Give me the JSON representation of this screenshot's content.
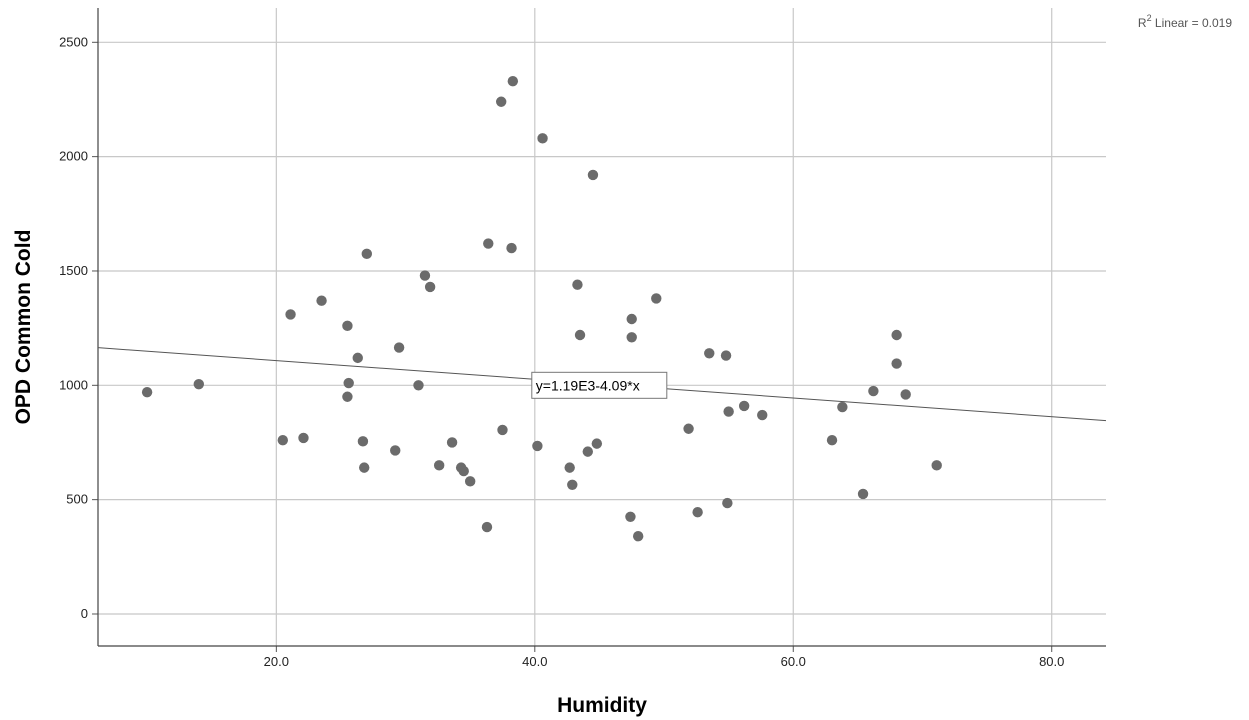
{
  "chart_data": {
    "type": "scatter",
    "xlabel": "Humidity",
    "ylabel": "OPD Common Cold",
    "xlim": [
      6.2,
      84.2
    ],
    "ylim": [
      -140,
      2650
    ],
    "x_ticks": [
      20,
      40,
      60,
      80
    ],
    "x_tick_labels": [
      "20.0",
      "40.0",
      "60.0",
      "80.0"
    ],
    "y_ticks": [
      0,
      500,
      1000,
      1500,
      2000,
      2500
    ],
    "y_tick_labels": [
      "0",
      "500",
      "1000",
      "1500",
      "2000",
      "2500"
    ],
    "grid": true,
    "point_color": "#6b6b6b",
    "fit_line": {
      "intercept": 1190,
      "slope": -4.09,
      "label": "y=1.19E3-4.09*x",
      "label_x": 40.0,
      "label_y": 1000
    },
    "r2_label": {
      "prefix": "R",
      "sup": "2",
      "suffix": " Linear = 0.019"
    },
    "points": [
      {
        "x": 10.0,
        "y": 970
      },
      {
        "x": 14.0,
        "y": 1005
      },
      {
        "x": 20.5,
        "y": 760
      },
      {
        "x": 21.1,
        "y": 1310
      },
      {
        "x": 22.1,
        "y": 770
      },
      {
        "x": 23.5,
        "y": 1370
      },
      {
        "x": 25.5,
        "y": 1260
      },
      {
        "x": 25.6,
        "y": 1010
      },
      {
        "x": 25.5,
        "y": 950
      },
      {
        "x": 26.3,
        "y": 1120
      },
      {
        "x": 26.7,
        "y": 755
      },
      {
        "x": 26.8,
        "y": 640
      },
      {
        "x": 27.0,
        "y": 1575
      },
      {
        "x": 29.2,
        "y": 715
      },
      {
        "x": 29.5,
        "y": 1165
      },
      {
        "x": 31.0,
        "y": 1000
      },
      {
        "x": 31.5,
        "y": 1480
      },
      {
        "x": 31.9,
        "y": 1430
      },
      {
        "x": 32.6,
        "y": 650
      },
      {
        "x": 33.6,
        "y": 750
      },
      {
        "x": 34.3,
        "y": 640
      },
      {
        "x": 34.5,
        "y": 625
      },
      {
        "x": 35.0,
        "y": 580
      },
      {
        "x": 36.3,
        "y": 380
      },
      {
        "x": 36.4,
        "y": 1620
      },
      {
        "x": 37.4,
        "y": 2240
      },
      {
        "x": 37.5,
        "y": 805
      },
      {
        "x": 38.2,
        "y": 1600
      },
      {
        "x": 38.3,
        "y": 2330
      },
      {
        "x": 40.2,
        "y": 735
      },
      {
        "x": 40.6,
        "y": 2080
      },
      {
        "x": 42.7,
        "y": 640
      },
      {
        "x": 42.9,
        "y": 565
      },
      {
        "x": 43.3,
        "y": 1440
      },
      {
        "x": 43.5,
        "y": 1220
      },
      {
        "x": 44.1,
        "y": 710
      },
      {
        "x": 44.5,
        "y": 1920
      },
      {
        "x": 44.8,
        "y": 745
      },
      {
        "x": 47.4,
        "y": 425
      },
      {
        "x": 47.5,
        "y": 1290
      },
      {
        "x": 47.5,
        "y": 1210
      },
      {
        "x": 48.0,
        "y": 340
      },
      {
        "x": 49.4,
        "y": 1380
      },
      {
        "x": 51.9,
        "y": 810
      },
      {
        "x": 52.6,
        "y": 445
      },
      {
        "x": 53.5,
        "y": 1140
      },
      {
        "x": 54.8,
        "y": 1130
      },
      {
        "x": 54.9,
        "y": 485
      },
      {
        "x": 55.0,
        "y": 885
      },
      {
        "x": 56.2,
        "y": 910
      },
      {
        "x": 57.6,
        "y": 870
      },
      {
        "x": 63.0,
        "y": 760
      },
      {
        "x": 63.8,
        "y": 905
      },
      {
        "x": 65.4,
        "y": 525
      },
      {
        "x": 66.2,
        "y": 975
      },
      {
        "x": 68.0,
        "y": 1220
      },
      {
        "x": 68.0,
        "y": 1095
      },
      {
        "x": 68.7,
        "y": 960
      },
      {
        "x": 71.1,
        "y": 650
      }
    ]
  }
}
